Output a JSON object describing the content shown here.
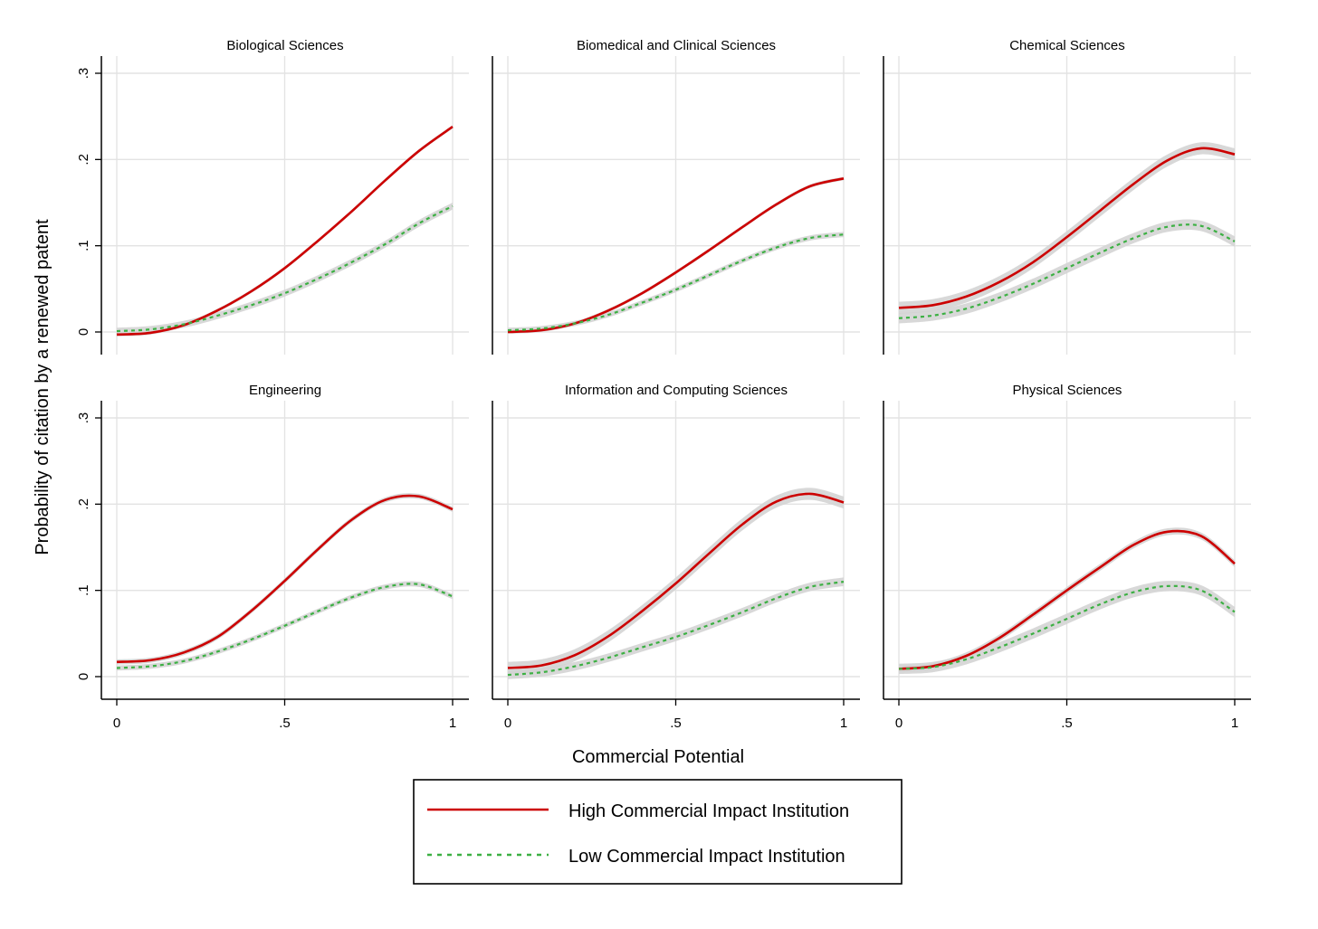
{
  "figure": {
    "xlabel": "Commercial Potential",
    "ylabel": "Probability of citation by a renewed patent"
  },
  "legend": {
    "items": [
      {
        "label": "High Commercial Impact Institution",
        "color": "#cc0000",
        "style": "solid"
      },
      {
        "label": "Low Commercial Impact Institution",
        "color": "#3cb043",
        "style": "dashed"
      }
    ]
  },
  "colors": {
    "high": "#cc0000",
    "low": "#3cb043",
    "ci_band": "#d4d4d4",
    "grid": "#e3e3e3"
  },
  "chart_data": [
    {
      "type": "line",
      "title": "Biological Sciences",
      "xlim": [
        0,
        1
      ],
      "ylim": [
        -0.025,
        0.32
      ],
      "xticks": [
        {
          "value": 0,
          "label": "0"
        },
        {
          "value": 0.5,
          "label": ".5"
        },
        {
          "value": 1,
          "label": "1"
        }
      ],
      "yticks": [
        {
          "value": 0,
          "label": "0"
        },
        {
          "value": 0.1,
          "label": ".1"
        },
        {
          "value": 0.2,
          "label": ".2"
        },
        {
          "value": 0.3,
          "label": ".3"
        }
      ],
      "x": [
        0,
        0.1,
        0.2,
        0.3,
        0.4,
        0.5,
        0.6,
        0.7,
        0.8,
        0.9,
        1.0
      ],
      "series": [
        {
          "name": "High Commercial Impact Institution",
          "values": [
            -0.003,
            -0.001,
            0.008,
            0.025,
            0.047,
            0.074,
            0.106,
            0.14,
            0.176,
            0.21,
            0.238
          ],
          "ci": 0.002
        },
        {
          "name": "Low Commercial Impact Institution",
          "values": [
            0.001,
            0.003,
            0.009,
            0.019,
            0.031,
            0.045,
            0.062,
            0.081,
            0.102,
            0.126,
            0.146
          ],
          "ci": 0.004
        }
      ]
    },
    {
      "type": "line",
      "title": "Biomedical and Clinical Sciences",
      "xlim": [
        0,
        1
      ],
      "ylim": [
        -0.025,
        0.32
      ],
      "xticks": [
        {
          "value": 0,
          "label": "0"
        },
        {
          "value": 0.5,
          "label": ".5"
        },
        {
          "value": 1,
          "label": "1"
        }
      ],
      "yticks": [
        {
          "value": 0,
          "label": "0"
        },
        {
          "value": 0.1,
          "label": ".1"
        },
        {
          "value": 0.2,
          "label": ".2"
        },
        {
          "value": 0.3,
          "label": ".3"
        }
      ],
      "x": [
        0,
        0.1,
        0.2,
        0.3,
        0.4,
        0.5,
        0.6,
        0.7,
        0.8,
        0.9,
        1.0
      ],
      "series": [
        {
          "name": "High Commercial Impact Institution",
          "values": [
            0.0,
            0.002,
            0.01,
            0.025,
            0.045,
            0.069,
            0.095,
            0.122,
            0.148,
            0.169,
            0.178
          ],
          "ci": 0.002
        },
        {
          "name": "Low Commercial Impact Institution",
          "values": [
            0.002,
            0.004,
            0.01,
            0.02,
            0.034,
            0.049,
            0.066,
            0.083,
            0.098,
            0.109,
            0.113
          ],
          "ci": 0.003
        }
      ]
    },
    {
      "type": "line",
      "title": "Chemical Sciences",
      "xlim": [
        0,
        1
      ],
      "ylim": [
        -0.025,
        0.32
      ],
      "xticks": [
        {
          "value": 0,
          "label": "0"
        },
        {
          "value": 0.5,
          "label": ".5"
        },
        {
          "value": 1,
          "label": "1"
        }
      ],
      "yticks": [
        {
          "value": 0,
          "label": "0"
        },
        {
          "value": 0.1,
          "label": ".1"
        },
        {
          "value": 0.2,
          "label": ".2"
        },
        {
          "value": 0.3,
          "label": ".3"
        }
      ],
      "x": [
        0,
        0.1,
        0.2,
        0.3,
        0.4,
        0.5,
        0.6,
        0.7,
        0.8,
        0.9,
        1.0
      ],
      "series": [
        {
          "name": "High Commercial Impact Institution",
          "values": [
            0.028,
            0.031,
            0.041,
            0.058,
            0.081,
            0.11,
            0.141,
            0.172,
            0.199,
            0.213,
            0.206
          ],
          "ci": 0.007
        },
        {
          "name": "Low Commercial Impact Institution",
          "values": [
            0.016,
            0.019,
            0.027,
            0.04,
            0.056,
            0.074,
            0.092,
            0.109,
            0.122,
            0.123,
            0.105
          ],
          "ci": 0.006
        }
      ]
    },
    {
      "type": "line",
      "title": "Engineering",
      "xlim": [
        0,
        1
      ],
      "ylim": [
        -0.025,
        0.32
      ],
      "xticks": [
        {
          "value": 0,
          "label": "0"
        },
        {
          "value": 0.5,
          "label": ".5"
        },
        {
          "value": 1,
          "label": "1"
        }
      ],
      "yticks": [
        {
          "value": 0,
          "label": "0"
        },
        {
          "value": 0.1,
          "label": ".1"
        },
        {
          "value": 0.2,
          "label": ".2"
        },
        {
          "value": 0.3,
          "label": ".3"
        }
      ],
      "x": [
        0,
        0.1,
        0.2,
        0.3,
        0.4,
        0.5,
        0.6,
        0.7,
        0.8,
        0.9,
        1.0
      ],
      "series": [
        {
          "name": "High Commercial Impact Institution",
          "values": [
            0.017,
            0.019,
            0.028,
            0.046,
            0.076,
            0.111,
            0.148,
            0.182,
            0.205,
            0.209,
            0.194
          ],
          "ci": 0.003
        },
        {
          "name": "Low Commercial Impact Institution",
          "values": [
            0.01,
            0.012,
            0.018,
            0.029,
            0.043,
            0.059,
            0.076,
            0.092,
            0.104,
            0.107,
            0.093
          ],
          "ci": 0.003
        }
      ]
    },
    {
      "type": "line",
      "title": "Information and Computing Sciences",
      "xlim": [
        0,
        1
      ],
      "ylim": [
        -0.025,
        0.32
      ],
      "xticks": [
        {
          "value": 0,
          "label": "0"
        },
        {
          "value": 0.5,
          "label": ".5"
        },
        {
          "value": 1,
          "label": "1"
        }
      ],
      "yticks": [
        {
          "value": 0,
          "label": "0"
        },
        {
          "value": 0.1,
          "label": ".1"
        },
        {
          "value": 0.2,
          "label": ".2"
        },
        {
          "value": 0.3,
          "label": ".3"
        }
      ],
      "x": [
        0,
        0.1,
        0.2,
        0.3,
        0.4,
        0.5,
        0.6,
        0.7,
        0.8,
        0.9,
        1.0
      ],
      "series": [
        {
          "name": "High Commercial Impact Institution",
          "values": [
            0.01,
            0.013,
            0.025,
            0.047,
            0.076,
            0.108,
            0.143,
            0.177,
            0.203,
            0.212,
            0.202
          ],
          "ci": 0.007
        },
        {
          "name": "Low Commercial Impact Institution",
          "values": [
            0.002,
            0.005,
            0.012,
            0.022,
            0.034,
            0.046,
            0.06,
            0.075,
            0.091,
            0.104,
            0.11
          ],
          "ci": 0.005
        }
      ]
    },
    {
      "type": "line",
      "title": "Physical Sciences",
      "xlim": [
        0,
        1
      ],
      "ylim": [
        -0.025,
        0.32
      ],
      "xticks": [
        {
          "value": 0,
          "label": "0"
        },
        {
          "value": 0.5,
          "label": ".5"
        },
        {
          "value": 1,
          "label": "1"
        }
      ],
      "yticks": [
        {
          "value": 0,
          "label": "0"
        },
        {
          "value": 0.1,
          "label": ".1"
        },
        {
          "value": 0.2,
          "label": ".2"
        },
        {
          "value": 0.3,
          "label": ".3"
        }
      ],
      "x": [
        0,
        0.1,
        0.2,
        0.3,
        0.4,
        0.5,
        0.6,
        0.7,
        0.8,
        0.9,
        1.0
      ],
      "series": [
        {
          "name": "High Commercial Impact Institution",
          "values": [
            0.009,
            0.012,
            0.024,
            0.045,
            0.072,
            0.1,
            0.127,
            0.153,
            0.168,
            0.163,
            0.131
          ],
          "ci": 0.004
        },
        {
          "name": "Low Commercial Impact Institution",
          "values": [
            0.009,
            0.011,
            0.02,
            0.034,
            0.05,
            0.067,
            0.084,
            0.098,
            0.105,
            0.1,
            0.075
          ],
          "ci": 0.006
        }
      ]
    }
  ]
}
